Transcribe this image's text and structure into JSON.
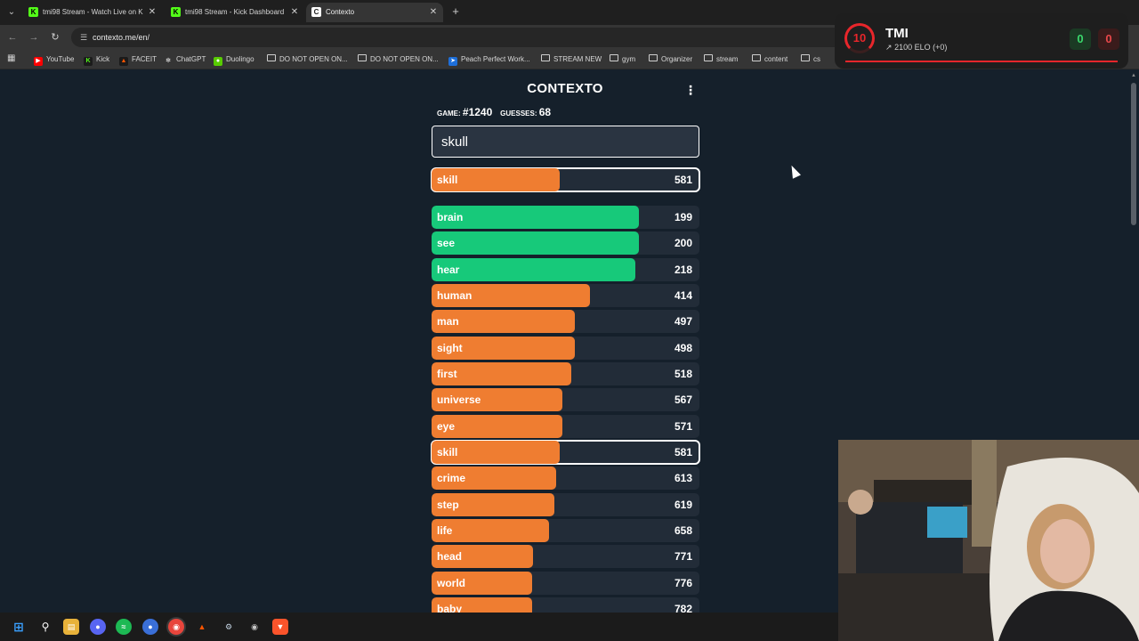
{
  "browser": {
    "tabs": [
      {
        "title": "tmi98 Stream - Watch Live on K",
        "icon": "kick-icon",
        "color": "#53fc18"
      },
      {
        "title": "tmi98 Stream - Kick Dashboard",
        "icon": "kick-icon",
        "color": "#53fc18"
      },
      {
        "title": "Contexto",
        "icon": "contexto-icon",
        "color": "#ffffff"
      }
    ],
    "url": "contexto.me/en/",
    "bookmarks": [
      {
        "label": "YouTube",
        "icon": "youtube-icon"
      },
      {
        "label": "Kick",
        "icon": "kick-icon"
      },
      {
        "label": "FACEIT",
        "icon": "faceit-icon"
      },
      {
        "label": "ChatGPT",
        "icon": "chatgpt-icon"
      },
      {
        "label": "Duolingo",
        "icon": "duolingo-icon"
      },
      {
        "label": "DO NOT OPEN ON...",
        "icon": "folder-icon"
      },
      {
        "label": "DO NOT OPEN ON...",
        "icon": "folder-icon"
      },
      {
        "label": "Peach Perfect Work...",
        "icon": "peach-icon"
      },
      {
        "label": "STREAM NEW",
        "icon": "folder-icon"
      },
      {
        "label": "gym",
        "icon": "folder-icon"
      },
      {
        "label": "Organizer",
        "icon": "folder-icon"
      },
      {
        "label": "stream",
        "icon": "folder-icon"
      },
      {
        "label": "content",
        "icon": "folder-icon"
      },
      {
        "label": "cs",
        "icon": "folder-icon"
      }
    ]
  },
  "game": {
    "title": "CONTEXTO",
    "game_label": "GAME:",
    "game_number": "#1240",
    "guesses_label": "GUESSES:",
    "guesses_count": "68",
    "input_value": "skull",
    "last_guess": {
      "word": "skill",
      "distance": 581,
      "fill": 0.48,
      "color": "orange"
    },
    "guesses": [
      {
        "word": "brain",
        "distance": 199,
        "fill": 0.775,
        "color": "green"
      },
      {
        "word": "see",
        "distance": 200,
        "fill": 0.773,
        "color": "green"
      },
      {
        "word": "hear",
        "distance": 218,
        "fill": 0.76,
        "color": "green"
      },
      {
        "word": "human",
        "distance": 414,
        "fill": 0.59,
        "color": "orange"
      },
      {
        "word": "man",
        "distance": 497,
        "fill": 0.535,
        "color": "orange"
      },
      {
        "word": "sight",
        "distance": 498,
        "fill": 0.534,
        "color": "orange"
      },
      {
        "word": "first",
        "distance": 518,
        "fill": 0.52,
        "color": "orange"
      },
      {
        "word": "universe",
        "distance": 567,
        "fill": 0.49,
        "color": "orange"
      },
      {
        "word": "eye",
        "distance": 571,
        "fill": 0.49,
        "color": "orange"
      },
      {
        "word": "skill",
        "distance": 581,
        "fill": 0.48,
        "color": "orange",
        "highlight": true
      },
      {
        "word": "crime",
        "distance": 613,
        "fill": 0.465,
        "color": "orange"
      },
      {
        "word": "step",
        "distance": 619,
        "fill": 0.46,
        "color": "orange"
      },
      {
        "word": "life",
        "distance": 658,
        "fill": 0.44,
        "color": "orange"
      },
      {
        "word": "head",
        "distance": 771,
        "fill": 0.38,
        "color": "orange"
      },
      {
        "word": "world",
        "distance": 776,
        "fill": 0.377,
        "color": "orange"
      },
      {
        "word": "baby",
        "distance": 782,
        "fill": 0.375,
        "color": "orange"
      }
    ],
    "colors": {
      "green": "#17c97a",
      "orange": "#ef7d31",
      "red": "#f01e52",
      "row_bg": "#222c38",
      "page_bg": "#15202b"
    }
  },
  "faceit_widget": {
    "level": "10",
    "name": "TMI",
    "elo_text": "2100 ELO (+0)",
    "wins": "0",
    "losses": "0"
  }
}
